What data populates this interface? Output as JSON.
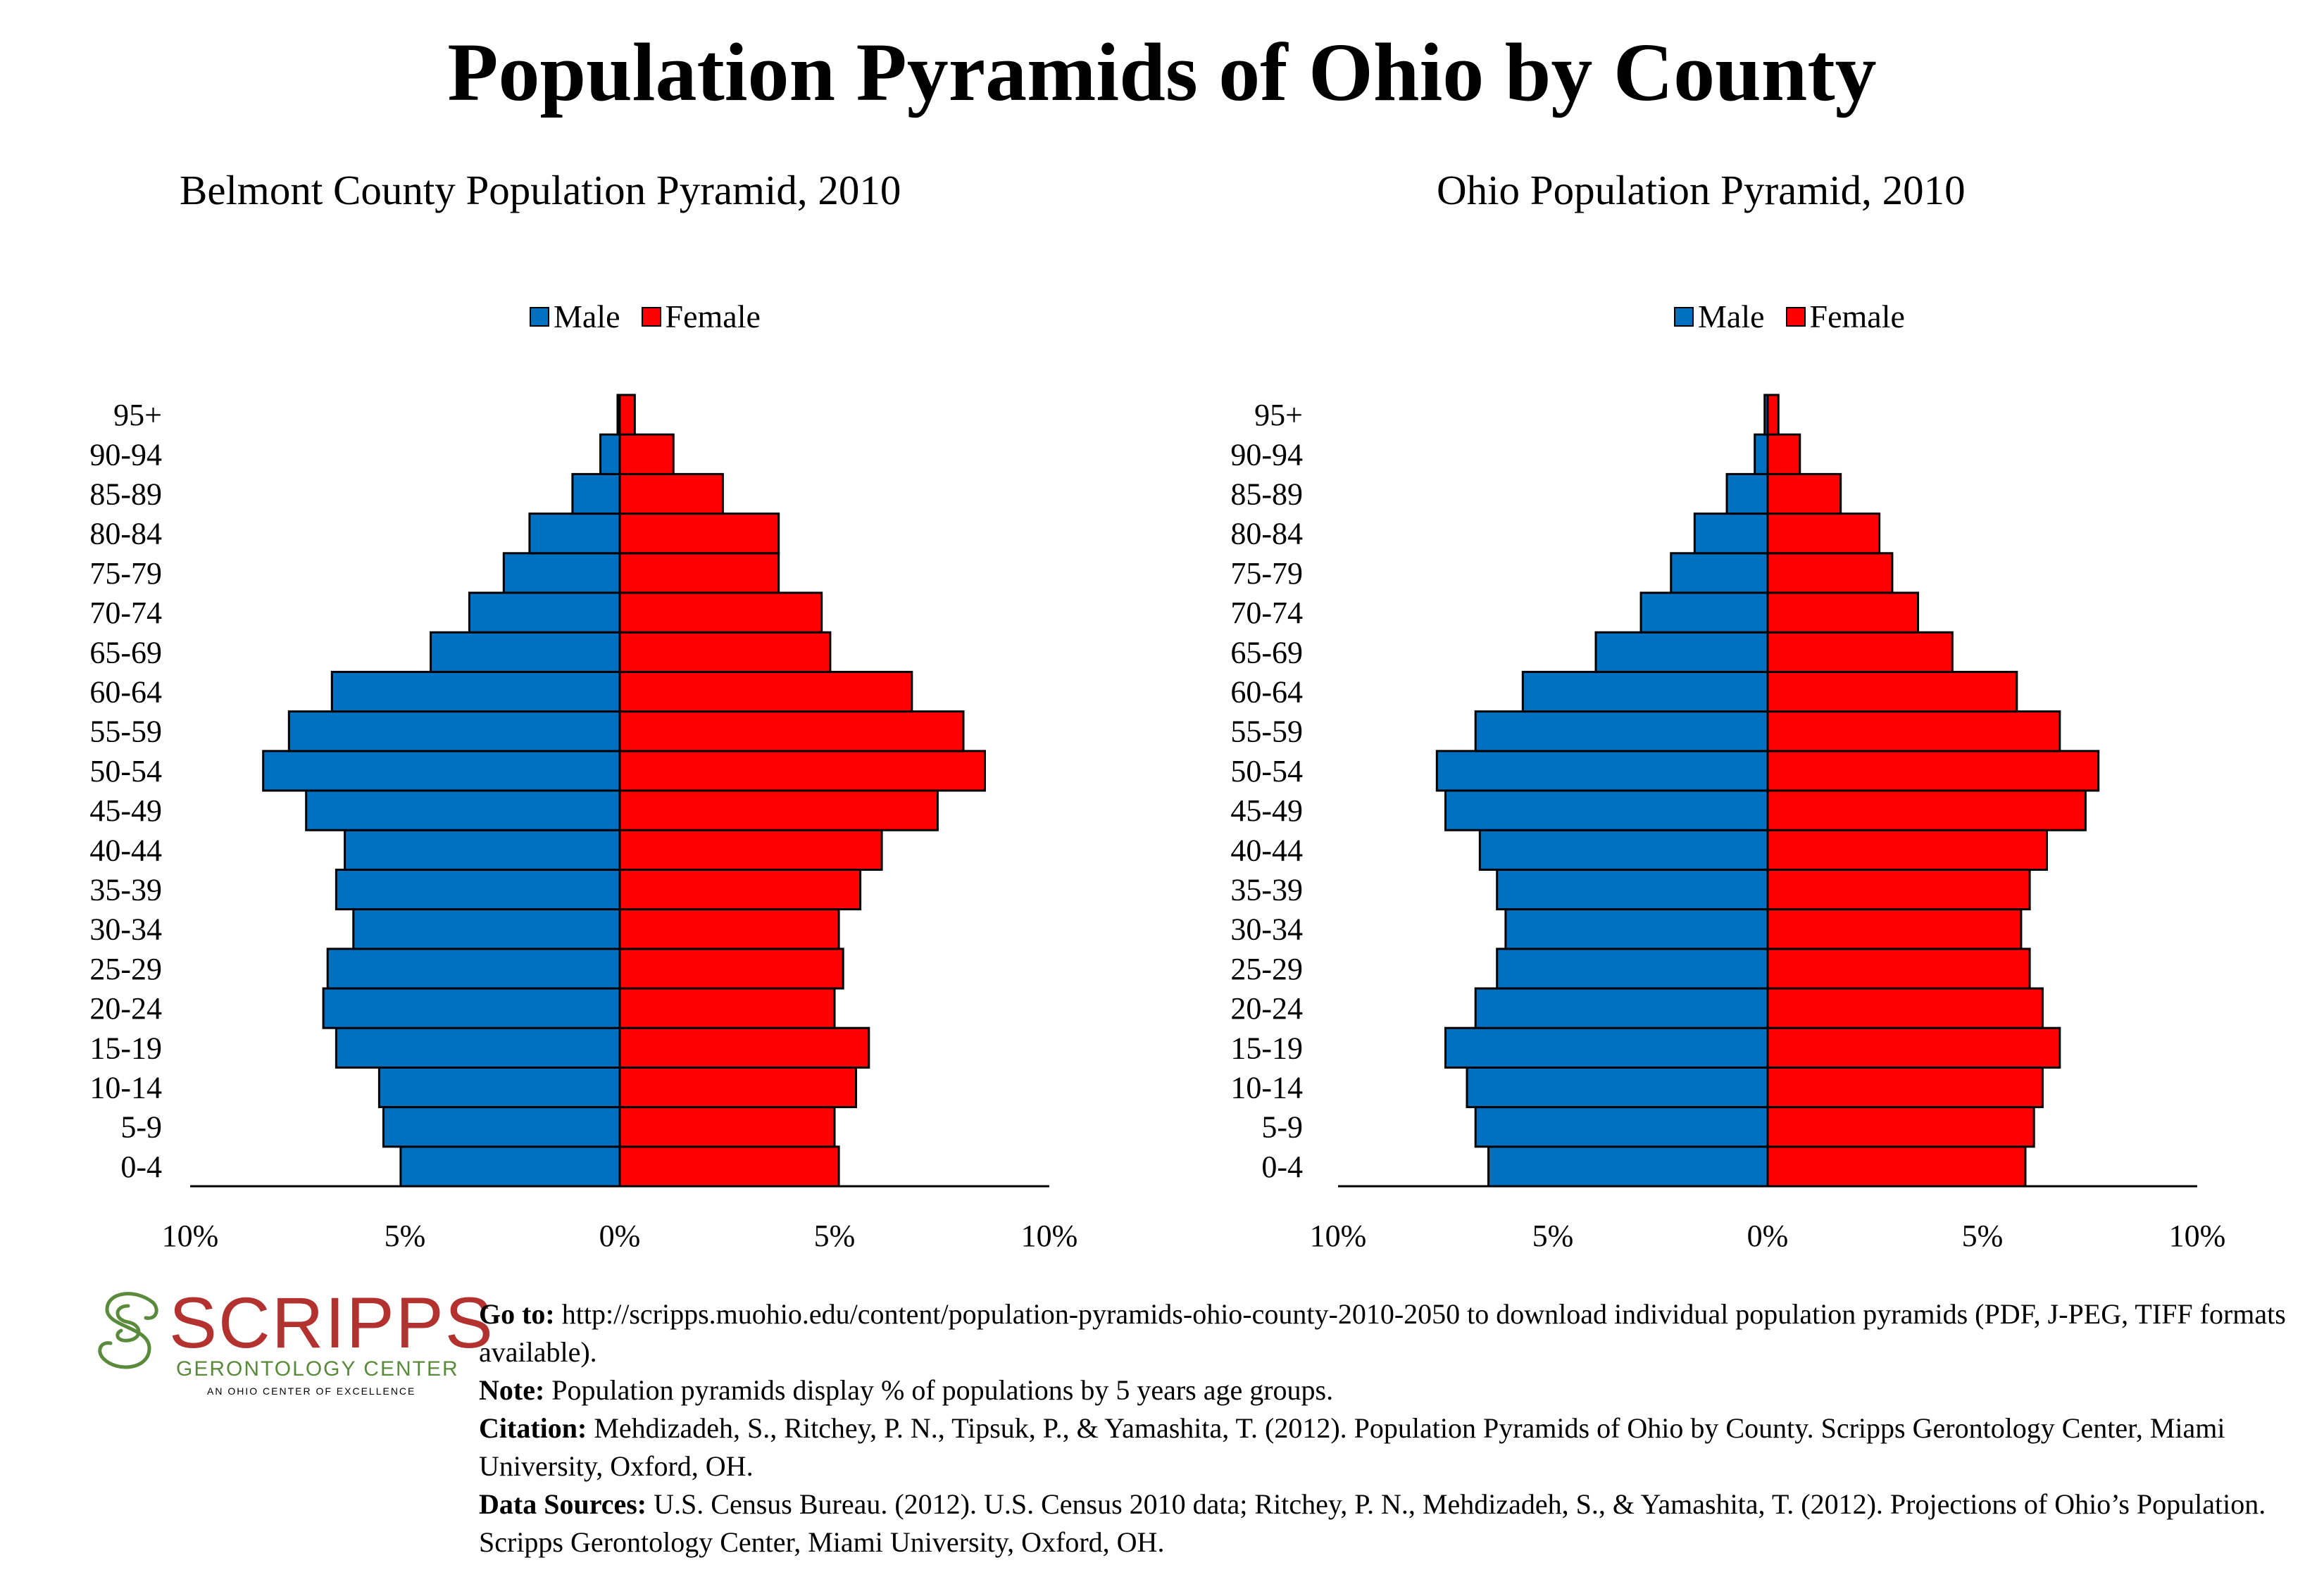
{
  "title": "Population Pyramids of Ohio by County",
  "chart_data": [
    {
      "type": "bar",
      "orientation": "horizontal-pyramid",
      "title": "Belmont County Population Pyramid, 2010",
      "categories": [
        "0-4",
        "5-9",
        "10-14",
        "15-19",
        "20-24",
        "25-29",
        "30-34",
        "35-39",
        "40-44",
        "45-49",
        "50-54",
        "55-59",
        "60-64",
        "65-69",
        "70-74",
        "75-79",
        "80-84",
        "85-89",
        "90-94",
        "95+"
      ],
      "series": [
        {
          "name": "Male",
          "color": "#0070c0",
          "values": [
            5.1,
            5.5,
            5.6,
            6.6,
            6.9,
            6.8,
            6.2,
            6.6,
            6.4,
            7.3,
            8.3,
            7.7,
            6.7,
            4.4,
            3.5,
            2.7,
            2.1,
            1.1,
            0.45,
            0.05
          ]
        },
        {
          "name": "Female",
          "color": "#ff0000",
          "values": [
            5.1,
            5.0,
            5.5,
            5.8,
            5.0,
            5.2,
            5.1,
            5.6,
            6.1,
            7.4,
            8.5,
            8.0,
            6.8,
            4.9,
            4.7,
            3.7,
            3.7,
            2.4,
            1.25,
            0.35
          ]
        }
      ],
      "xlim": [
        -10,
        10
      ],
      "xticks": [
        "10%",
        "5%",
        "0%",
        "5%",
        "10%"
      ],
      "legend": "top-center",
      "grid": false
    },
    {
      "type": "bar",
      "orientation": "horizontal-pyramid",
      "title": "Ohio Population Pyramid, 2010",
      "categories": [
        "0-4",
        "5-9",
        "10-14",
        "15-19",
        "20-24",
        "25-29",
        "30-34",
        "35-39",
        "40-44",
        "45-49",
        "50-54",
        "55-59",
        "60-64",
        "65-69",
        "70-74",
        "75-79",
        "80-84",
        "85-89",
        "90-94",
        "95+"
      ],
      "series": [
        {
          "name": "Male",
          "color": "#0070c0",
          "values": [
            6.5,
            6.8,
            7.0,
            7.5,
            6.8,
            6.3,
            6.1,
            6.3,
            6.7,
            7.5,
            7.7,
            6.8,
            5.7,
            4.0,
            2.95,
            2.25,
            1.7,
            0.95,
            0.3,
            0.07
          ]
        },
        {
          "name": "Female",
          "color": "#ff0000",
          "values": [
            6.0,
            6.2,
            6.4,
            6.8,
            6.4,
            6.1,
            5.9,
            6.1,
            6.5,
            7.4,
            7.7,
            6.8,
            5.8,
            4.3,
            3.5,
            2.9,
            2.6,
            1.7,
            0.75,
            0.25
          ]
        }
      ],
      "xlim": [
        -10,
        10
      ],
      "xticks": [
        "10%",
        "5%",
        "0%",
        "5%",
        "10%"
      ],
      "legend": "top-center",
      "grid": false
    }
  ],
  "logo": {
    "name": "SCRIPPS",
    "subtitle": "GERONTOLOGY CENTER",
    "tagline": "AN OHIO CENTER OF EXCELLENCE",
    "color_primary": "#b3312f",
    "color_secondary": "#5a8a3c"
  },
  "notes": {
    "goto_label": "Go to:",
    "goto_text": "http://scripps.muohio.edu/content/population-pyramids-ohio-county-2010-2050 to download individual population pyramids (PDF, J-PEG, TIFF formats available).",
    "note_label": "Note:",
    "note_text": "Population pyramids display % of populations by 5 years age groups.",
    "citation_label": "Citation:",
    "citation_text": "Mehdizadeh, S., Ritchey, P. N., Tipsuk, P., & Yamashita, T. (2012). Population Pyramids of Ohio by County. Scripps Gerontology Center, Miami University, Oxford, OH.",
    "sources_label": "Data Sources:",
    "sources_text": "U.S. Census Bureau. (2012). U.S. Census 2010 data; Ritchey, P. N., Mehdizadeh, S., & Yamashita, T. (2012). Projections of Ohio’s Population. Scripps Gerontology Center, Miami University, Oxford, OH."
  }
}
